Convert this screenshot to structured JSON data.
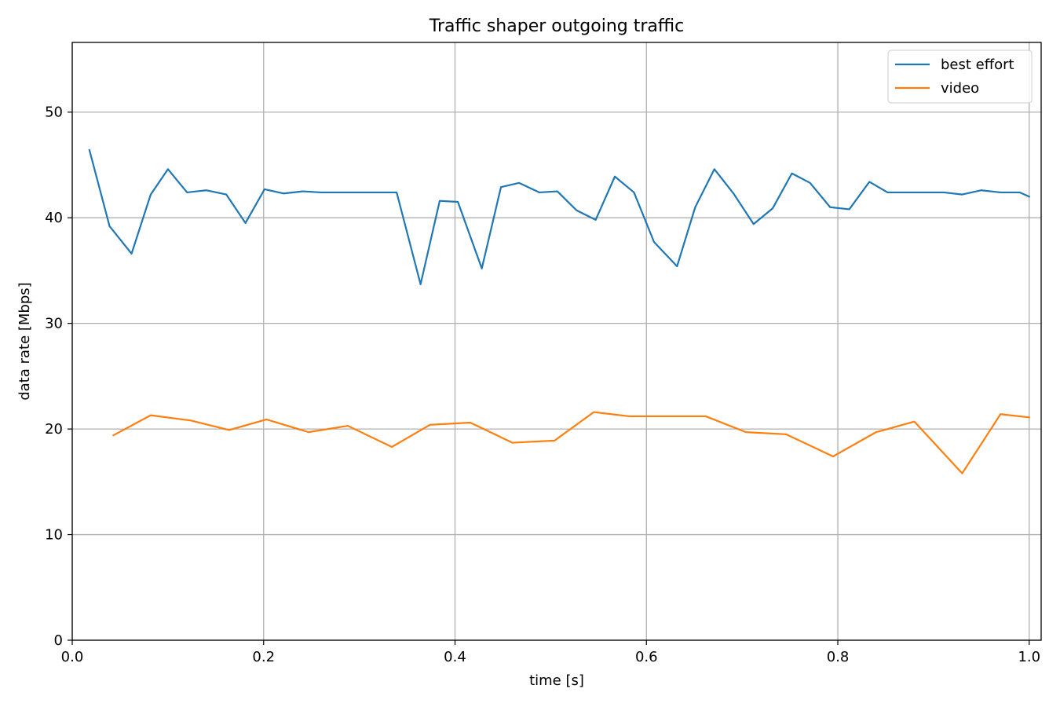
{
  "chart_data": {
    "type": "line",
    "title": "Traffic shaper outgoing traffic",
    "xlabel": "time [s]",
    "ylabel": "data rate [Mbps]",
    "xlim": [
      0.0,
      1.0125
    ],
    "ylim": [
      0,
      56.6
    ],
    "xticks": [
      0.0,
      0.2,
      0.4,
      0.6,
      0.8,
      1.0
    ],
    "xtick_labels": [
      "0.0",
      "0.2",
      "0.4",
      "0.6",
      "0.8",
      "1.0"
    ],
    "yticks": [
      0,
      10,
      20,
      30,
      40,
      50
    ],
    "ytick_labels": [
      "0",
      "10",
      "20",
      "30",
      "40",
      "50"
    ],
    "grid": true,
    "legend_position": "top-right",
    "series": [
      {
        "name": "best effort",
        "color": "#1f77b4",
        "x": [
          0.018,
          0.039,
          0.062,
          0.082,
          0.1,
          0.12,
          0.14,
          0.161,
          0.181,
          0.201,
          0.221,
          0.241,
          0.26,
          0.28,
          0.3,
          0.319,
          0.339,
          0.364,
          0.384,
          0.403,
          0.428,
          0.448,
          0.467,
          0.488,
          0.507,
          0.527,
          0.547,
          0.567,
          0.587,
          0.608,
          0.632,
          0.651,
          0.671,
          0.691,
          0.712,
          0.732,
          0.752,
          0.771,
          0.792,
          0.812,
          0.833,
          0.852,
          0.871,
          0.891,
          0.911,
          0.93,
          0.95,
          0.97,
          0.99,
          1.0
        ],
        "y": [
          46.4,
          39.2,
          36.6,
          42.2,
          44.6,
          42.4,
          42.6,
          42.2,
          39.5,
          42.7,
          42.3,
          42.5,
          42.4,
          42.4,
          42.4,
          42.4,
          42.4,
          33.7,
          41.6,
          41.5,
          35.2,
          42.9,
          43.3,
          42.4,
          42.5,
          40.7,
          39.8,
          43.9,
          42.4,
          37.7,
          35.4,
          41.0,
          44.6,
          42.3,
          39.4,
          40.9,
          44.2,
          43.3,
          41.0,
          40.8,
          43.4,
          42.4,
          42.4,
          42.4,
          42.4,
          42.2,
          42.6,
          42.4,
          42.4,
          42.0
        ]
      },
      {
        "name": "video",
        "color": "#ff7f0e",
        "x": [
          0.043,
          0.082,
          0.124,
          0.164,
          0.203,
          0.247,
          0.288,
          0.334,
          0.374,
          0.416,
          0.46,
          0.504,
          0.545,
          0.582,
          0.624,
          0.662,
          0.704,
          0.746,
          0.795,
          0.84,
          0.88,
          0.93,
          0.97,
          1.0
        ],
        "y": [
          19.4,
          21.3,
          20.8,
          19.9,
          20.9,
          19.7,
          20.3,
          18.3,
          20.4,
          20.6,
          18.7,
          18.9,
          21.6,
          21.2,
          21.2,
          21.2,
          19.7,
          19.5,
          17.4,
          19.7,
          20.7,
          15.8,
          21.4,
          21.1
        ]
      }
    ]
  }
}
